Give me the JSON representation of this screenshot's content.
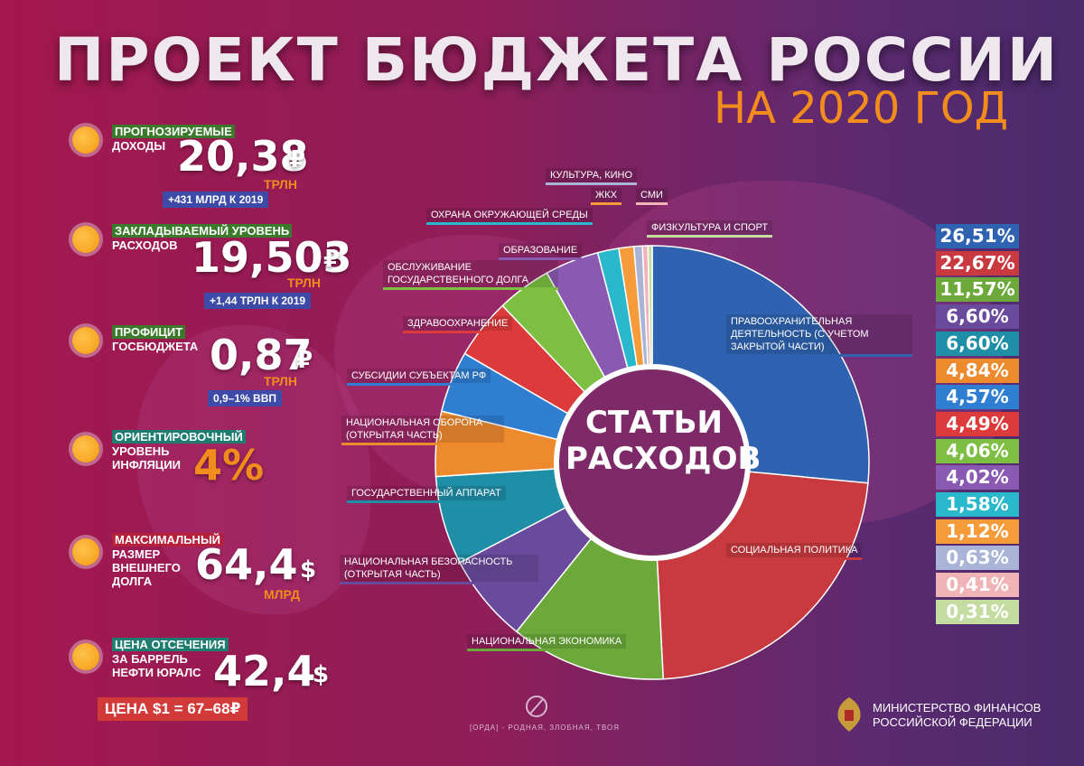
{
  "title": "ПРОЕКТ БЮДЖЕТА РОССИИ",
  "subtitle": "НА 2020 ГОД",
  "stats": [
    {
      "label_hl": "ПРОГНОЗИРУЕМЫЕ",
      "label_rest": "ДОХОДЫ",
      "value": "20,38",
      "currency": "₽",
      "unit": "ТРЛН",
      "note": "+431 МЛРД К 2019"
    },
    {
      "label_hl": "ЗАКЛАДЫВАЕМЫЙ УРОВЕНЬ",
      "label_rest": "РАСХОДОВ",
      "value": "19,503",
      "currency": "₽",
      "unit": "ТРЛН",
      "note": "+1,44 ТРЛН К 2019"
    },
    {
      "label_hl": "ПРОФИЦИТ",
      "label_rest": "ГОСБЮДЖЕТА",
      "value": "0,87",
      "currency": "₽",
      "unit": "ТРЛН",
      "note": "0,9–1% ВВП"
    },
    {
      "label_hl": "ОРИЕНТИРОВОЧНЫЙ",
      "label_rest": "УРОВЕНЬ ИНФЛЯЦИИ",
      "value": "4%"
    },
    {
      "label_hl": "МАКСИМАЛЬНЫЙ",
      "label_rest": "РАЗМЕР ВНЕШНЕГО ДОЛГА",
      "value": "64,4",
      "currency": "$",
      "unit": "МЛРД"
    },
    {
      "label_hl": "ЦЕНА ОТСЕЧЕНИЯ",
      "label_rest": "ЗА БАРРЕЛЬ НЕФТИ ЮРАЛС",
      "value": "42,4",
      "currency": "$"
    }
  ],
  "price_note": "ЦЕНА $1 = 67–68₽",
  "center_label": "СТАТЬИ РАСХОДОВ",
  "footer": "[ОРДА] - РОДНАЯ, ЗЛОБНАЯ, ТВОЯ",
  "ministry": "МИНИСТЕРСТВО ФИНАНСОВ РОССИЙСКОЙ ФЕДЕРАЦИИ",
  "chart_data": {
    "type": "pie",
    "title": "СТАТЬИ РАСХОДОВ",
    "slices": [
      {
        "label": "ПРАВООХРАНИТЕЛЬНАЯ ДЕЯТЕЛЬНОСТЬ (С УЧЕТОМ ЗАКРЫТОЙ ЧАСТИ)",
        "value": 26.51,
        "display": "26,51%",
        "color": "#2f63b2"
      },
      {
        "label": "СОЦИАЛЬНАЯ ПОЛИТИКА",
        "value": 22.67,
        "display": "22,67%",
        "color": "#c83a3f"
      },
      {
        "label": "НАЦИОНАЛЬНАЯ ЭКОНОМИКА",
        "value": 11.57,
        "display": "11,57%",
        "color": "#6ca93a"
      },
      {
        "label": "НАЦИОНАЛЬНАЯ БЕЗОПАСНОСТЬ (ОТКРЫТАЯ ЧАСТЬ)",
        "value": 6.6,
        "display": "6,60%",
        "color": "#6a4a9c"
      },
      {
        "label": "ГОСУДАРСТВЕННЫЙ АППАРАТ",
        "value": 6.6,
        "display": "6,60%",
        "color": "#1f8fa8"
      },
      {
        "label": "НАЦИОНАЛЬНАЯ ОБОРОНА (ОТКРЫТАЯ ЧАСТЬ)",
        "value": 4.84,
        "display": "4,84%",
        "color": "#ee8a2e"
      },
      {
        "label": "СУБСИДИИ СУБЪЕКТАМ РФ",
        "value": 4.57,
        "display": "4,57%",
        "color": "#2f7ed2"
      },
      {
        "label": "ЗДРАВООХРАНЕНИЕ",
        "value": 4.49,
        "display": "4,49%",
        "color": "#dd3b3b"
      },
      {
        "label": "ОБСЛУЖИВАНИЕ ГОСУДАРСТВЕННОГО ДОЛГА",
        "value": 4.06,
        "display": "4,06%",
        "color": "#7cbf43"
      },
      {
        "label": "ОБРАЗОВАНИЕ",
        "value": 4.02,
        "display": "4,02%",
        "color": "#8a5ab2"
      },
      {
        "label": "ОХРАНА ОКРУЖАЮЩЕЙ СРЕДЫ",
        "value": 1.58,
        "display": "1,58%",
        "color": "#29b8cc"
      },
      {
        "label": "ЖКХ",
        "value": 1.12,
        "display": "1,12%",
        "color": "#f59b3a"
      },
      {
        "label": "КУЛЬТУРА, КИНО",
        "value": 0.63,
        "display": "0,63%",
        "color": "#aab4d6"
      },
      {
        "label": "СМИ",
        "value": 0.41,
        "display": "0,41%",
        "color": "#f0b3b6"
      },
      {
        "label": "ФИЗКУЛЬТУРА И СПОРТ",
        "value": 0.31,
        "display": "0,31%",
        "color": "#c4dca0"
      }
    ]
  }
}
